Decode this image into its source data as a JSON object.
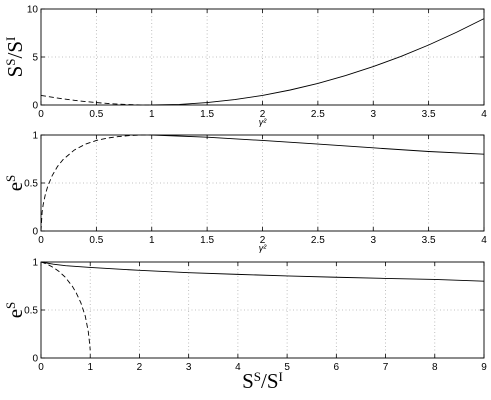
{
  "chart_data": [
    {
      "type": "line",
      "ylabel": {
        "base1": "S",
        "sup1": "S",
        "slash": "/",
        "base2": "S",
        "sup2": "I"
      },
      "xlabel": "γ²",
      "xlim": [
        0,
        4
      ],
      "ylim": [
        0,
        10
      ],
      "x_ticks": [
        "0",
        "0.5",
        "1",
        "1.5",
        "2",
        "2.5",
        "3",
        "3.5",
        "4"
      ],
      "y_ticks": [
        "0",
        "5",
        "10"
      ],
      "grid": true,
      "series": [
        {
          "style": "dashed",
          "x": [
            0,
            0.1,
            0.2,
            0.3,
            0.4,
            0.5,
            0.6,
            0.7,
            0.8,
            0.9,
            1.0
          ],
          "y": [
            1.0,
            0.81,
            0.64,
            0.49,
            0.36,
            0.25,
            0.16,
            0.09,
            0.04,
            0.01,
            0.0
          ]
        },
        {
          "style": "solid",
          "x": [
            1.0,
            1.25,
            1.5,
            1.75,
            2.0,
            2.25,
            2.5,
            2.75,
            3.0,
            3.25,
            3.5,
            3.75,
            4.0
          ],
          "y": [
            0.0,
            0.0625,
            0.25,
            0.5625,
            1.0,
            1.5625,
            2.25,
            3.0625,
            4.0,
            5.0625,
            6.25,
            7.5625,
            9.0
          ]
        }
      ]
    },
    {
      "type": "line",
      "ylabel": {
        "base": "e",
        "sup": "S"
      },
      "xlabel": "γ²",
      "xlim": [
        0,
        4
      ],
      "ylim": [
        0,
        1
      ],
      "x_ticks": [
        "0",
        "0.5",
        "1",
        "1.5",
        "2",
        "2.5",
        "3",
        "3.5",
        "4"
      ],
      "y_ticks": [
        "0",
        "0.5",
        "1"
      ],
      "grid": true,
      "series": [
        {
          "style": "dashed",
          "x": [
            0.0,
            0.01,
            0.02,
            0.04,
            0.06,
            0.1,
            0.15,
            0.2,
            0.3,
            0.4,
            0.5,
            0.6,
            0.7,
            0.8,
            0.9,
            1.0
          ],
          "y": [
            0.0,
            0.198,
            0.277,
            0.385,
            0.462,
            0.575,
            0.674,
            0.745,
            0.843,
            0.904,
            0.943,
            0.968,
            0.984,
            0.994,
            0.999,
            1.0
          ]
        },
        {
          "style": "solid",
          "x": [
            1.0,
            1.5,
            2.0,
            2.5,
            3.0,
            3.5,
            4.0
          ],
          "y": [
            1.0,
            0.977,
            0.943,
            0.906,
            0.866,
            0.828,
            0.8
          ]
        }
      ]
    },
    {
      "type": "line",
      "ylabel": {
        "base": "e",
        "sup": "S"
      },
      "xlabel": {
        "base1": "S",
        "sup1": "S",
        "slash": "/",
        "base2": "S",
        "sup2": "I"
      },
      "xlim": [
        0,
        9
      ],
      "ylim": [
        0,
        1
      ],
      "x_ticks": [
        "0",
        "1",
        "2",
        "3",
        "4",
        "5",
        "6",
        "7",
        "8",
        "9"
      ],
      "y_ticks": [
        "0",
        "0.5",
        "1"
      ],
      "grid": true,
      "series": [
        {
          "style": "dashed",
          "x": [
            0.0,
            0.01,
            0.04,
            0.09,
            0.16,
            0.25,
            0.36,
            0.49,
            0.64,
            0.72,
            0.81,
            0.9,
            0.96,
            0.99,
            1.0
          ],
          "y": [
            1.0,
            0.999,
            0.994,
            0.984,
            0.968,
            0.943,
            0.904,
            0.843,
            0.745,
            0.674,
            0.575,
            0.435,
            0.277,
            0.141,
            0.08
          ]
        },
        {
          "style": "solid",
          "x": [
            0.0,
            0.25,
            0.5,
            1,
            2,
            3,
            4,
            5,
            6,
            7,
            8,
            9
          ],
          "y": [
            1.0,
            0.977,
            0.962,
            0.943,
            0.913,
            0.889,
            0.871,
            0.855,
            0.841,
            0.829,
            0.818,
            0.8
          ]
        }
      ]
    }
  ]
}
